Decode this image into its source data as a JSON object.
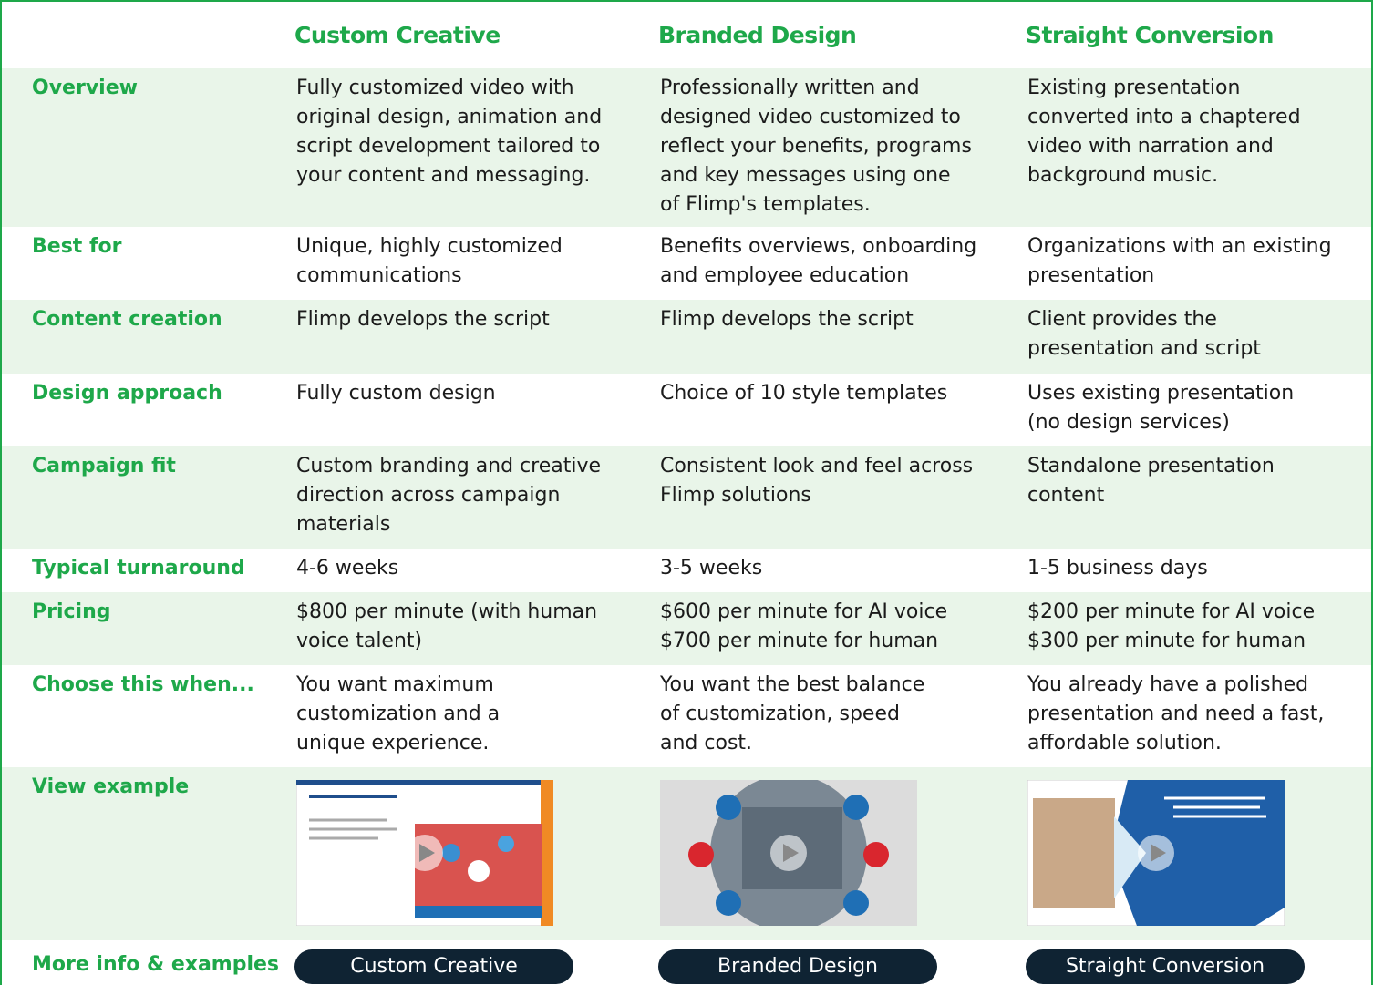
{
  "header": {
    "columns": [
      "Custom Creative",
      "Branded Design",
      "Straight Conversion"
    ]
  },
  "table": {
    "rows": [
      {
        "label": "Overview",
        "cells": [
          [
            "Fully customized video with",
            "original design, animation and",
            "script development tailored to",
            "your content and messaging."
          ],
          [
            "Professionally written and",
            "designed video customized to",
            "reflect your benefits, programs",
            "and key messages using one",
            "of Flimp's templates."
          ],
          [
            "Existing presentation",
            "converted into a chaptered",
            "video with narration and",
            "background music."
          ]
        ]
      },
      {
        "label": "Best for",
        "cells": [
          [
            "Unique, highly customized",
            "communications"
          ],
          [
            "Benefits overviews, onboarding",
            "and employee education"
          ],
          [
            "Organizations with an existing",
            "presentation"
          ]
        ]
      },
      {
        "label": "Content creation",
        "cells": [
          [
            "Flimp develops the script"
          ],
          [
            "Flimp develops the script"
          ],
          [
            "Client provides the",
            "presentation and script"
          ]
        ]
      },
      {
        "label": "Design approach",
        "cells": [
          [
            "Fully custom design"
          ],
          [
            "Choice of 10 style templates"
          ],
          [
            "Uses existing presentation",
            "(no design services)"
          ]
        ]
      },
      {
        "label": "Campaign fit",
        "cells": [
          [
            "Custom branding and creative",
            "direction across campaign",
            "materials"
          ],
          [
            "Consistent look and feel across",
            "Flimp solutions"
          ],
          [
            "Standalone presentation",
            "content"
          ]
        ]
      },
      {
        "label": "Typical turnaround",
        "cells": [
          [
            "4-6 weeks"
          ],
          [
            "3-5 weeks"
          ],
          [
            "1-5 business days"
          ]
        ]
      },
      {
        "label": "Pricing",
        "cells": [
          [
            "$800 per minute (with human",
            "voice talent)"
          ],
          [
            "$600 per minute for AI voice",
            "$700 per minute for human"
          ],
          [
            "$200 per minute for AI voice",
            "$300 per minute for human"
          ]
        ]
      },
      {
        "label": "Choose this when...",
        "cells": [
          [
            "You want maximum",
            "customization and a",
            "unique experience."
          ],
          [
            "You want the best balance",
            "of customization, speed",
            "and cost."
          ],
          [
            "You already have a polished",
            "presentation and need a fast,",
            "affordable solution."
          ]
        ]
      },
      {
        "label": "View example",
        "cells": [
          [],
          [],
          []
        ]
      },
      {
        "label": "More info & examples",
        "buttons": [
          "Custom Creative",
          "Branded Design",
          "Straight Conversion"
        ]
      }
    ]
  }
}
